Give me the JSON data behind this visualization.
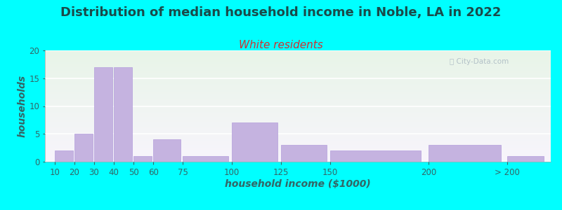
{
  "title": "Distribution of median household income in Noble, LA in 2022",
  "subtitle": "White residents",
  "xlabel": "household income ($1000)",
  "ylabel": "households",
  "background_fig": "#00FFFF",
  "background_ax_top": "#e8f4e8",
  "background_ax_bottom": "#f8f4fc",
  "bar_color": "#c5b3e0",
  "bar_edge_color": "#b39ddb",
  "categories": [
    "10",
    "20",
    "30",
    "40",
    "50",
    "60",
    "75",
    "100",
    "125",
    "150",
    "200",
    "> 200"
  ],
  "values": [
    2,
    5,
    17,
    17,
    1,
    4,
    1,
    7,
    3,
    2,
    3,
    1
  ],
  "ylim": [
    0,
    20
  ],
  "yticks": [
    0,
    5,
    10,
    15,
    20
  ],
  "title_fontsize": 13,
  "subtitle_fontsize": 11,
  "title_color": "#1a4a4a",
  "subtitle_color": "#cc3333",
  "ylabel_fontsize": 10,
  "xlabel_fontsize": 10,
  "tick_label_color": "#336666",
  "x_positions": [
    10,
    20,
    30,
    40,
    50,
    60,
    75,
    100,
    125,
    150,
    200,
    240
  ],
  "x_widths": [
    10,
    10,
    10,
    10,
    10,
    15,
    25,
    25,
    25,
    50,
    40,
    20
  ],
  "xtick_positions": [
    10,
    20,
    30,
    40,
    50,
    60,
    75,
    100,
    125,
    150,
    200,
    240
  ],
  "xlim": [
    5,
    262
  ],
  "watermark": "City-Data.com"
}
